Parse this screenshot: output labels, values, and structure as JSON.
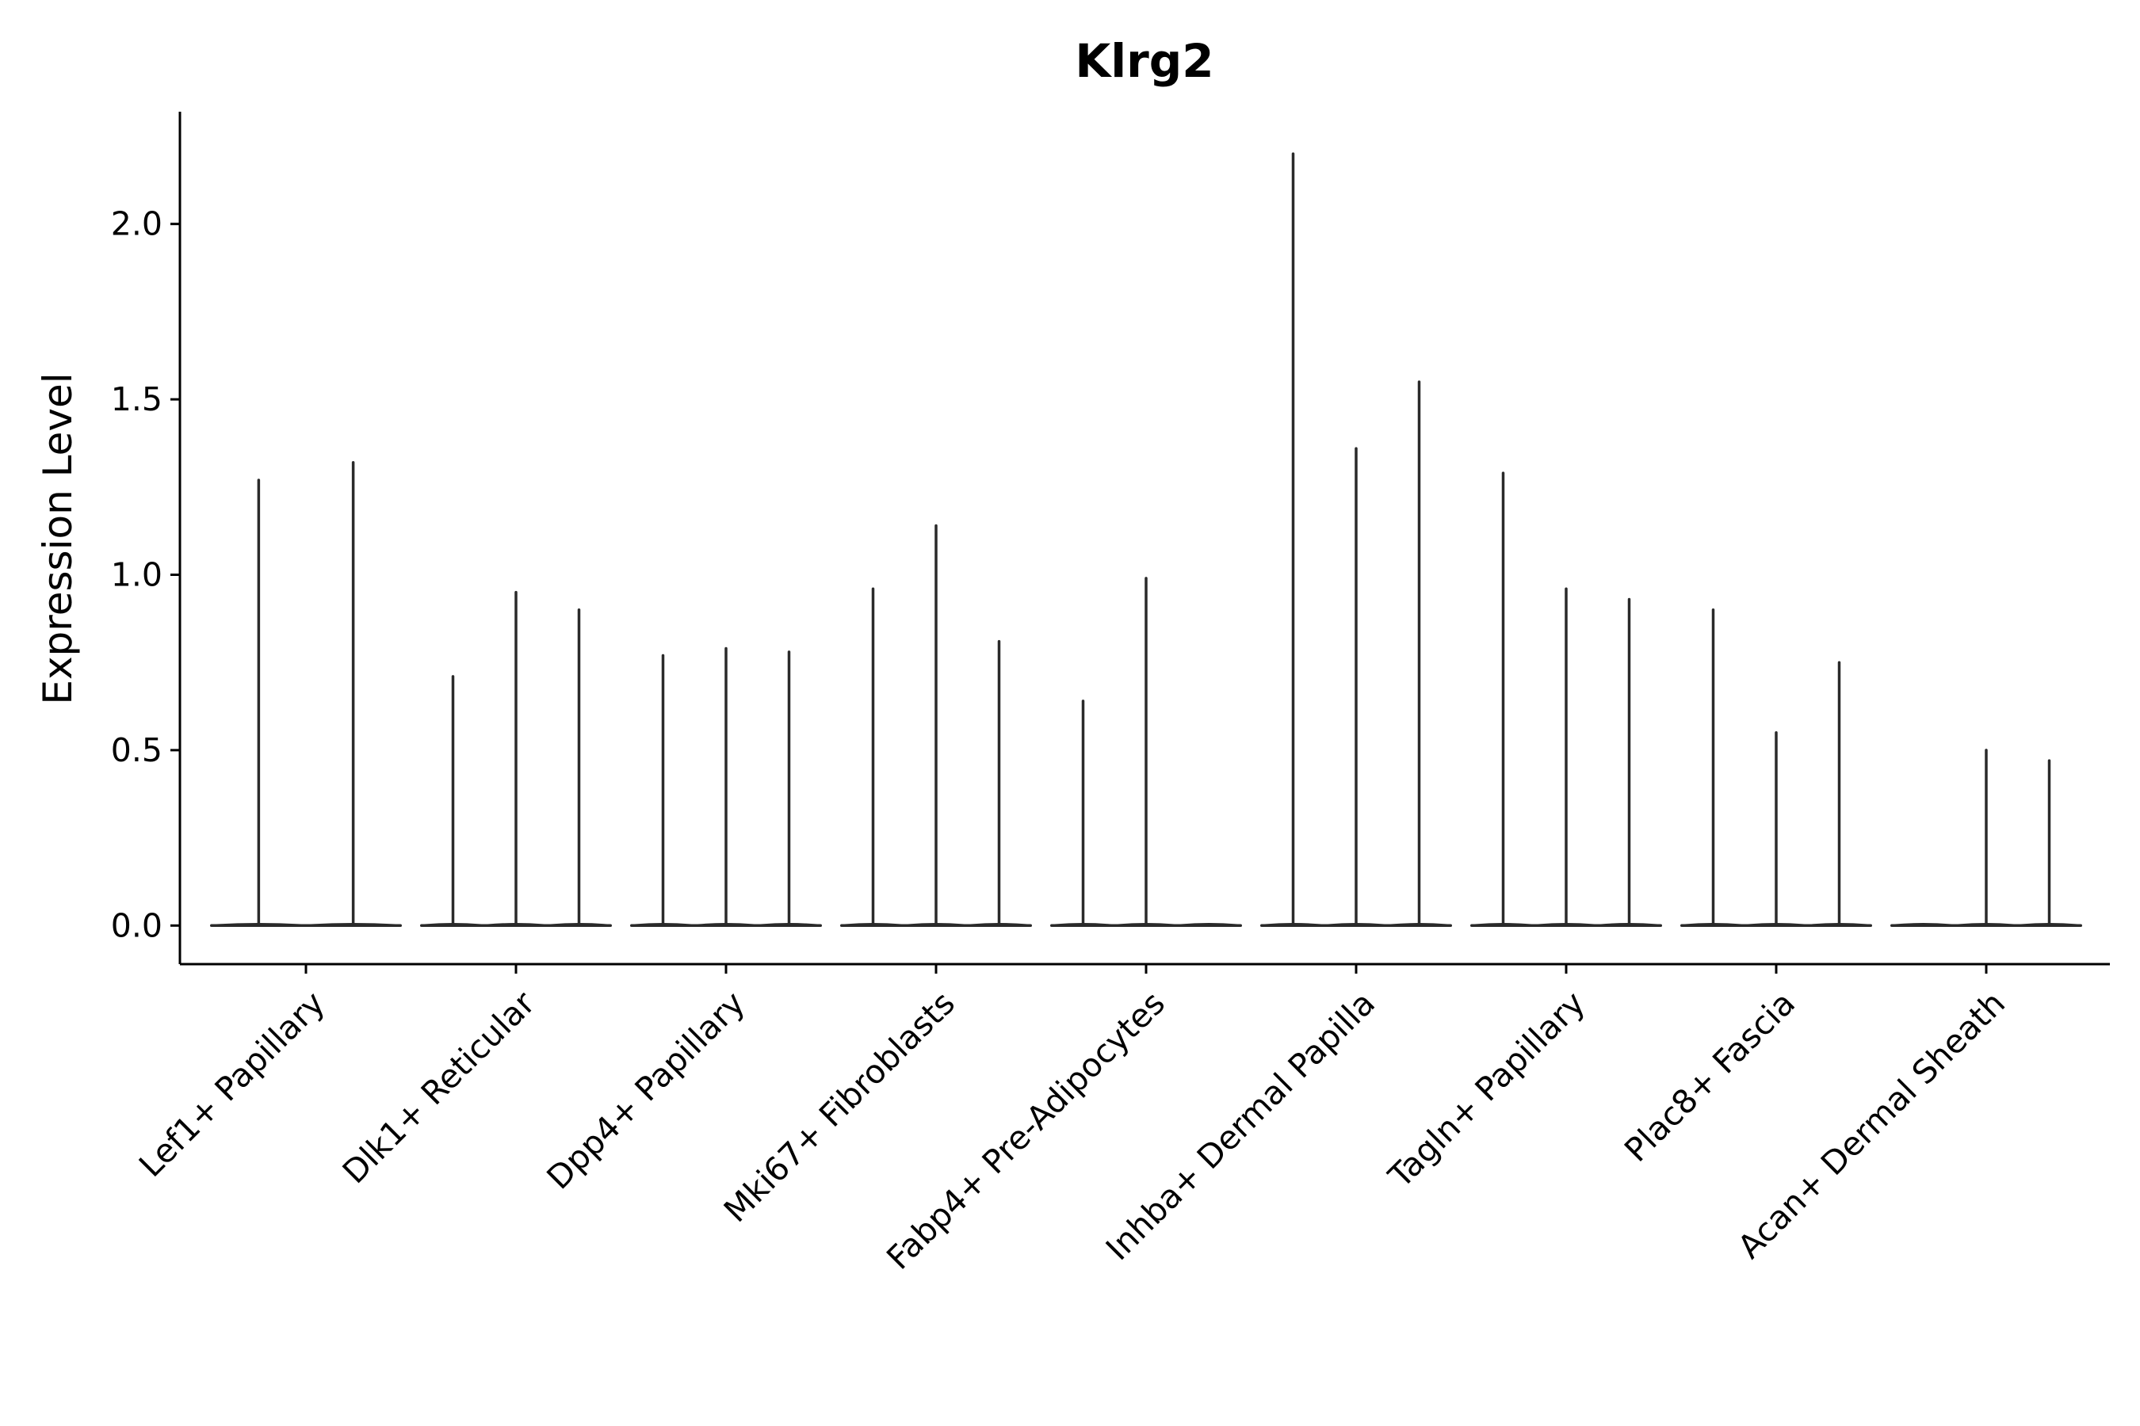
{
  "chart_data": {
    "type": "violin",
    "title": "Klrg2",
    "xlabel": "",
    "ylabel": "Expression Level",
    "ylim": [
      -0.11,
      2.32
    ],
    "yticks": [
      0.0,
      0.5,
      1.0,
      1.5,
      2.0
    ],
    "ytick_labels": [
      "0.0",
      "0.5",
      "1.0",
      "1.5",
      "2.0"
    ],
    "grid": false,
    "legend": "none",
    "categories": [
      "Lef1+ Papillary",
      "Dlk1+ Reticular",
      "Dpp4+ Papillary",
      "Mki67+ Fibroblasts",
      "Fabp4+ Pre-Adipocytes",
      "Inhba+ Dermal Papilla",
      "Tagln+ Papillary",
      "Plac8+ Fascia",
      "Acan+ Dermal Sheath"
    ],
    "series": [
      {
        "name": "Lef1+ Papillary",
        "sub_violins": [
          {
            "offset": -0.225,
            "max": 1.27
          },
          {
            "offset": 0.225,
            "max": 1.32
          }
        ]
      },
      {
        "name": "Dlk1+ Reticular",
        "sub_violins": [
          {
            "offset": -0.3,
            "max": 0.71
          },
          {
            "offset": 0.0,
            "max": 0.95
          },
          {
            "offset": 0.3,
            "max": 0.9
          }
        ]
      },
      {
        "name": "Dpp4+ Papillary",
        "sub_violins": [
          {
            "offset": -0.3,
            "max": 0.77
          },
          {
            "offset": 0.0,
            "max": 0.79
          },
          {
            "offset": 0.3,
            "max": 0.78
          }
        ]
      },
      {
        "name": "Mki67+ Fibroblasts",
        "sub_violins": [
          {
            "offset": -0.3,
            "max": 0.96
          },
          {
            "offset": 0.0,
            "max": 1.14
          },
          {
            "offset": 0.3,
            "max": 0.81
          }
        ]
      },
      {
        "name": "Fabp4+ Pre-Adipocytes",
        "sub_violins": [
          {
            "offset": -0.3,
            "max": 0.64
          },
          {
            "offset": 0.0,
            "max": 0.99
          },
          {
            "offset": 0.3,
            "max": 0.0
          }
        ]
      },
      {
        "name": "Inhba+ Dermal Papilla",
        "sub_violins": [
          {
            "offset": -0.3,
            "max": 2.2
          },
          {
            "offset": 0.0,
            "max": 1.36
          },
          {
            "offset": 0.3,
            "max": 1.55
          }
        ]
      },
      {
        "name": "Tagln+ Papillary",
        "sub_violins": [
          {
            "offset": -0.3,
            "max": 1.29
          },
          {
            "offset": 0.0,
            "max": 0.96
          },
          {
            "offset": 0.3,
            "max": 0.93
          }
        ]
      },
      {
        "name": "Plac8+ Fascia",
        "sub_violins": [
          {
            "offset": -0.3,
            "max": 0.9
          },
          {
            "offset": 0.0,
            "max": 0.55
          },
          {
            "offset": 0.3,
            "max": 0.75
          }
        ]
      },
      {
        "name": "Acan+ Dermal Sheath",
        "sub_violins": [
          {
            "offset": -0.3,
            "max": 0.0
          },
          {
            "offset": 0.0,
            "max": 0.5
          },
          {
            "offset": 0.3,
            "max": 0.47
          }
        ]
      }
    ]
  },
  "colors": {
    "violin_stroke": "#2a2a2a",
    "axis": "#000000",
    "background": "#ffffff"
  }
}
